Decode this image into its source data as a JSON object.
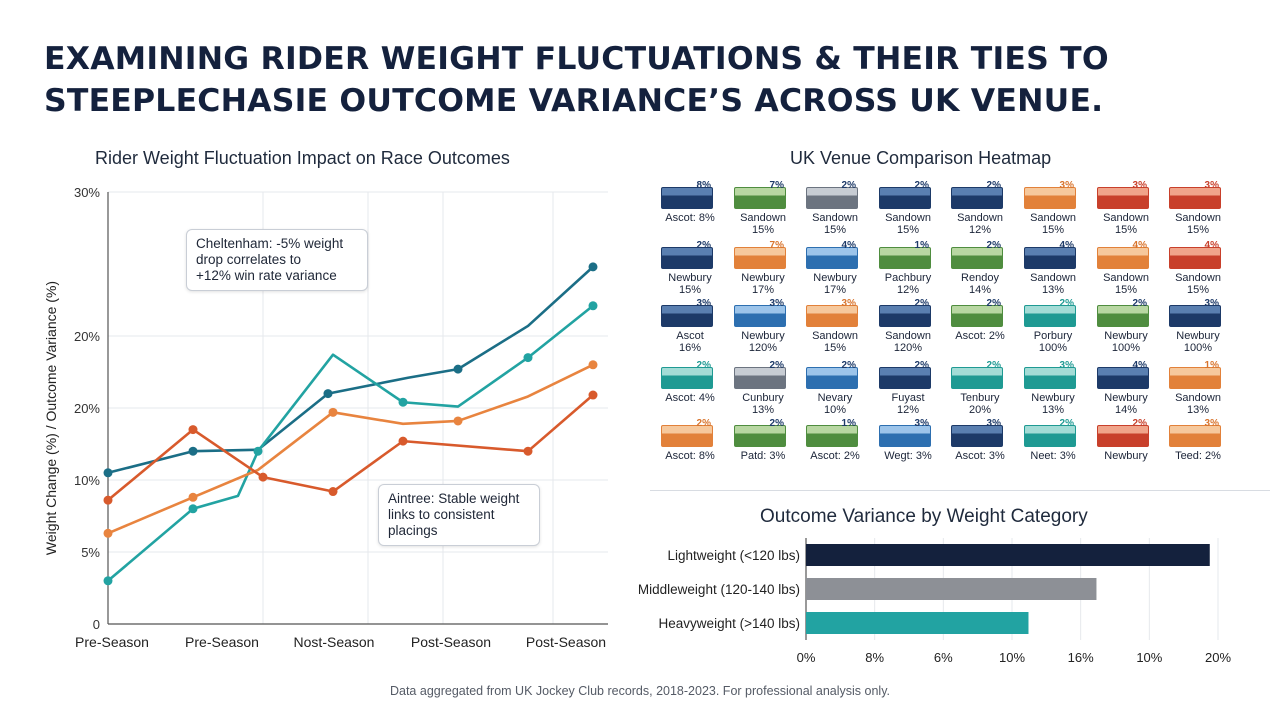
{
  "title_lines": [
    "EXAMINING RIDER WEIGHT FLUCTUATIONS & THEIR TIES TO",
    "STEEPLECHASIE OUTCOME VARIANCE’S ACROSS UK VENUE."
  ],
  "footer": "Data aggregated from UK Jockey Club records, 2018-2023. For professional analysis only.",
  "colors": {
    "navy": "#1b6e86",
    "teal": "#22a3a2",
    "orange": "#e8843f",
    "red": "#d85a2c",
    "bar_navy": "#14213d",
    "bar_gray": "#8d9096",
    "bar_teal": "#22a3a2"
  },
  "chart_data": [
    {
      "type": "line",
      "title": "Rider Weight Fluctuation Impact on Race Outcomes",
      "ylabel": "Weight Change (%) / Outcome Variance (%)",
      "xlabel": "",
      "categories": [
        "Pre-Season",
        "Pre-Season",
        "Nost-Season",
        "Post-Season",
        "Post-Season"
      ],
      "y_tick_labels": [
        "0",
        "5%",
        "10%",
        "20%",
        "20%",
        "30%"
      ],
      "ylim": [
        0,
        30
      ],
      "grid": true,
      "x": [
        0,
        0.8,
        1.0,
        1.5,
        2.2,
        2.3,
        3.0,
        3.5,
        4.0,
        4.3,
        4.5,
        4.85,
        5.0
      ],
      "series": [
        {
          "color": "navy",
          "points": [
            [
              0,
              10.5
            ],
            [
              0.85,
              12.0
            ],
            [
              1.5,
              12.1
            ],
            [
              2.2,
              16.0
            ],
            [
              3.0,
              17.1
            ],
            [
              3.5,
              17.7
            ],
            [
              4.2,
              20.7
            ],
            [
              4.85,
              24.8
            ]
          ]
        },
        {
          "color": "teal",
          "points": [
            [
              0,
              3.0
            ],
            [
              0.85,
              8.0
            ],
            [
              1.3,
              8.9
            ],
            [
              1.5,
              12.0
            ],
            [
              2.25,
              18.7
            ],
            [
              2.95,
              15.4
            ],
            [
              3.5,
              15.1
            ],
            [
              4.2,
              18.5
            ],
            [
              4.85,
              22.1
            ]
          ]
        },
        {
          "color": "orange",
          "points": [
            [
              0,
              6.3
            ],
            [
              0.85,
              8.8
            ],
            [
              1.5,
              10.7
            ],
            [
              2.25,
              14.7
            ],
            [
              2.95,
              13.9
            ],
            [
              3.5,
              14.1
            ],
            [
              4.2,
              15.8
            ],
            [
              4.85,
              18.0
            ]
          ]
        },
        {
          "color": "red",
          "points": [
            [
              0,
              8.6
            ],
            [
              0.85,
              13.5
            ],
            [
              1.55,
              10.2
            ],
            [
              2.25,
              9.2
            ],
            [
              2.95,
              12.7
            ],
            [
              4.2,
              12.0
            ],
            [
              4.85,
              15.9
            ]
          ]
        }
      ],
      "annotations": [
        "Cheltenham: -5% weight\ndrop correlates to\n+12% win rate variance",
        "Aintree: Stable weight\nlinks to consistent\nplacings"
      ]
    },
    {
      "type": "heatmap",
      "title": "UK Venue Comparison Heatmap",
      "rows": [
        [
          [
            "Ascot: 8%",
            "8%",
            "navy"
          ],
          [
            "Sandown\n15%",
            "7%",
            "green"
          ],
          [
            "Sandown\n15%",
            "2%",
            "gray"
          ],
          [
            "Sandown\n15%",
            "2%",
            "navy"
          ],
          [
            "Sandown\n12%",
            "2%",
            "navy"
          ],
          [
            "Sandown\n15%",
            "3%",
            "orange"
          ],
          [
            "Sandown\n15%",
            "3%",
            "red"
          ],
          [
            "Sandown\n15%",
            "3%",
            "red"
          ]
        ],
        [
          [
            "Newbury\n15%",
            "2%",
            "navy"
          ],
          [
            "Newbury\n17%",
            "7%",
            "orange"
          ],
          [
            "Newbury\n17%",
            "4%",
            "blue"
          ],
          [
            "Pachbury\n12%",
            "1%",
            "green"
          ],
          [
            "Rendoy\n14%",
            "2%",
            "green"
          ],
          [
            "Sandown\n13%",
            "4%",
            "navy"
          ],
          [
            "Sandown\n15%",
            "4%",
            "orange"
          ],
          [
            "Sandown\n15%",
            "4%",
            "red"
          ]
        ],
        [
          [
            "Ascot\n16%",
            "3%",
            "navy"
          ],
          [
            "Newbury\n120%",
            "3%",
            "blue"
          ],
          [
            "Sandown\n15%",
            "3%",
            "orange"
          ],
          [
            "Sandown\n120%",
            "2%",
            "navy"
          ],
          [
            "Ascot: 2%",
            "2%",
            "green"
          ],
          [
            "Porbury\n100%",
            "2%",
            "teal"
          ],
          [
            "Newbury\n100%",
            "2%",
            "green"
          ],
          [
            "Newbury\n100%",
            "3%",
            "navy"
          ]
        ],
        [
          [
            "Ascot: 4%",
            "2%",
            "teal"
          ],
          [
            "Cunbury\n13%",
            "2%",
            "gray"
          ],
          [
            "Nevary\n10%",
            "2%",
            "blue"
          ],
          [
            "Fuyast\n12%",
            "2%",
            "navy"
          ],
          [
            "Tenbury\n20%",
            "2%",
            "teal"
          ],
          [
            "Newbury\n13%",
            "3%",
            "teal"
          ],
          [
            "Newbury\n14%",
            "4%",
            "navy"
          ],
          [
            "Sandown\n13%",
            "1%",
            "orange"
          ]
        ],
        [
          [
            "Ascot: 8%",
            "2%",
            "orange"
          ],
          [
            "Patd: 3%",
            "2%",
            "green"
          ],
          [
            "Ascot: 2%",
            "1%",
            "green"
          ],
          [
            "Wegt: 3%",
            "3%",
            "blue"
          ],
          [
            "Ascot: 3%",
            "3%",
            "navy"
          ],
          [
            "Neet: 3%",
            "2%",
            "teal"
          ],
          [
            "Newbury",
            "2%",
            "red"
          ],
          [
            "Teed: 2%",
            "3%",
            "orange"
          ]
        ]
      ]
    },
    {
      "type": "bar",
      "orientation": "horizontal",
      "title": "Outcome Variance by Weight Category",
      "categories": [
        "Lightweight (<120 lbs)",
        "Middleweight (120-140 lbs)",
        "Heavyweight (>140 lbs)"
      ],
      "values": [
        19.6,
        14.1,
        10.8
      ],
      "x_tick_labels": [
        "0%",
        "8%",
        "6%",
        "10%",
        "16%",
        "10%",
        "20%"
      ],
      "xlim": [
        0,
        20
      ],
      "grid": true
    }
  ]
}
